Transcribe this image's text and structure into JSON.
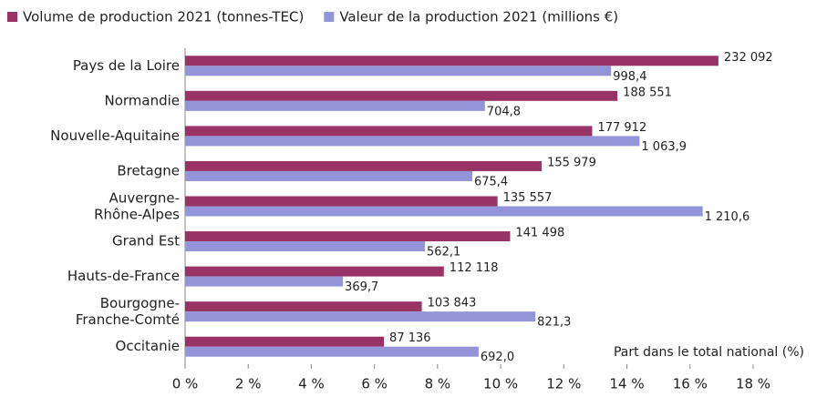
{
  "chart_data": {
    "type": "hbar",
    "categories": [
      "Pays de la Loire",
      "Normandie",
      "Nouvelle-Aquitaine",
      "Bretagne",
      "Auvergne-Rhône-Alpes",
      "Grand Est",
      "Hauts-de-France",
      "Bourgogne-Franche-Comté",
      "Occitanie"
    ],
    "series": [
      {
        "name": "Volume de production 2021 (tonnes-TEC)",
        "color": "#993366",
        "values": [
          16.9,
          13.7,
          12.9,
          11.3,
          9.9,
          10.3,
          8.2,
          7.5,
          6.3
        ],
        "labels": [
          "232 092",
          "188 551",
          "177 912",
          "155 979",
          "135 557",
          "141 498",
          "112 118",
          "103 843",
          "87 136"
        ]
      },
      {
        "name": "Valeur de la production 2021 (millions €)",
        "color": "#9494d8",
        "values": [
          13.5,
          9.5,
          14.4,
          9.1,
          16.4,
          7.6,
          5.0,
          11.1,
          9.3
        ],
        "labels": [
          "998,4",
          "704,8",
          "1 063,9",
          "675,4",
          "1 210,6",
          "562,1",
          "369,7",
          "821,3",
          "692,0"
        ]
      }
    ],
    "xlim": [
      0,
      18
    ],
    "xticks": [
      {
        "value": 0,
        "label": "0 %"
      },
      {
        "value": 2,
        "label": "2 %"
      },
      {
        "value": 4,
        "label": "4 %"
      },
      {
        "value": 6,
        "label": "6 %"
      },
      {
        "value": 8,
        "label": "8 %"
      },
      {
        "value": 10,
        "label": "10 %"
      },
      {
        "value": 12,
        "label": "12 %"
      },
      {
        "value": 14,
        "label": "14 %"
      },
      {
        "value": 16,
        "label": "16 %"
      },
      {
        "value": 18,
        "label": "18 %"
      }
    ],
    "annotation": "Part dans le total national (%)"
  }
}
